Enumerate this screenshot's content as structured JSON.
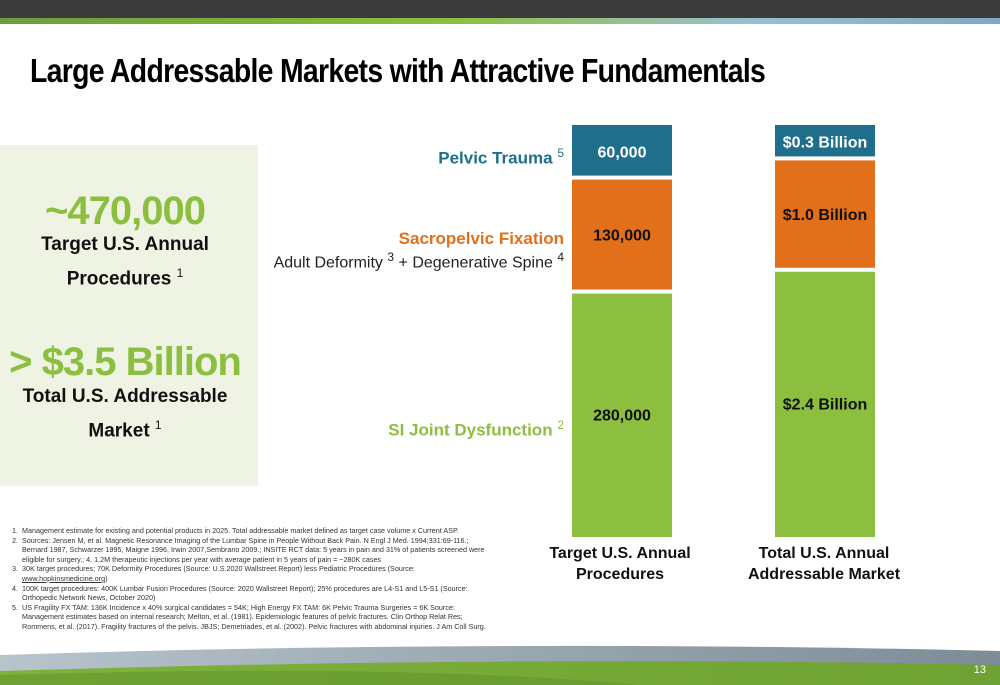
{
  "slide": {
    "title": "Large Addressable Markets with Attractive Fundamentals",
    "page_number": "13"
  },
  "stats": {
    "procedures_value": "~470,000",
    "procedures_line1": "Target U.S. Annual",
    "procedures_line2": "Procedures",
    "procedures_note": "1",
    "market_value": "> $3.5 Billion",
    "market_line1": "Total U.S. Addressable",
    "market_line2": "Market",
    "market_note": "1"
  },
  "segment_labels": {
    "pelvic": {
      "text": "Pelvic Trauma",
      "note": "5"
    },
    "sacropelvic": {
      "text": "Sacropelvic Fixation"
    },
    "sacropelvic_sub": {
      "part1": "Adult Deformity",
      "note1": "3",
      "part2": "+ Degenerative Spine",
      "note2": "4"
    },
    "si": {
      "text": "SI Joint Dysfunction",
      "note": "2"
    }
  },
  "chart_data": {
    "type": "bar",
    "stacked": true,
    "categories": [
      "Target U.S. Annual Procedures",
      "Total U.S. Annual Addressable Market"
    ],
    "category_lines": [
      [
        "Target U.S. Annual",
        "Procedures"
      ],
      [
        "Total U.S. Annual",
        "Addressable Market"
      ]
    ],
    "stack_order": [
      "SI Joint Dysfunction",
      "Sacropelvic Fixation",
      "Pelvic Trauma"
    ],
    "segment_colors": [
      "#8cbf3f",
      "#e26f1a",
      "#1f6e8c"
    ],
    "bars": [
      {
        "values": [
          280000,
          130000,
          60000
        ],
        "labels": [
          "280,000",
          "130,000",
          "60,000"
        ]
      },
      {
        "values": [
          2.4,
          1.0,
          0.3
        ],
        "labels": [
          "$2.4 Billion",
          "$1.0 Billion",
          "$0.3 Billion"
        ]
      }
    ],
    "grid": false,
    "legend": "none"
  },
  "footnotes": [
    {
      "num": "1.",
      "text": "Management estimate for existing and potential products in 2025. Total addressable market defined as target case volume x Current ASP."
    },
    {
      "num": "2.",
      "text": "Sources: Jensen M, et al. Magnetic Resonance Imaging of the Lumbar Spine in People Without Back Pain. N Engl J Med. 1994;331:69-116.; Bernard 1987, Schwarzer 1995, Maigne 1996, Irwin 2007,Sembrano 2009.; INSITE RCT data: 5 years in pain and 31% of patients screened were eligible for surgery.; 4. 1.2M therapeutic injections per year with average patient in 5 years of pain = ~280K cases"
    },
    {
      "num": "3.",
      "text": "30K target procedures; 70K Deformity Procedures (Source: U.S.2020 Wallstreet Report) less Pediatric Procedures (Source: ",
      "link": "www.hopkinsmedicine.org",
      "text_after": ")"
    },
    {
      "num": "4.",
      "text": "100K target procedures: 400K Lumbar Fusion Procedures (Source: 2020 Wallstreet Report); 25% procedures are L4-S1 and L5-S1 (Source: Orthopedic Network News, October 2020)"
    },
    {
      "num": "5.",
      "text": "US Fragility FX TAM: 136K Incidence x 40% surgical candidates = 54K; High Energy FX TAM: 6K Pelvic Trauma Surgeries = 6K Source: Management estimates based on internal research; Melton, et al. (1981). Epidemiologic features of pelvic fractures. Clin Orthop Relat Res; Rommens, et al. (2017). Fragility fractures of the pelvis. JBJS; Demetriades, et al. (2002). Pelvic fractures with abdominal injuries. J Am Coll Surg."
    }
  ],
  "colors": {
    "green": "#8cbf3f",
    "orange": "#e26f1a",
    "teal": "#1f6e8c",
    "panel": "#eef3e4"
  }
}
